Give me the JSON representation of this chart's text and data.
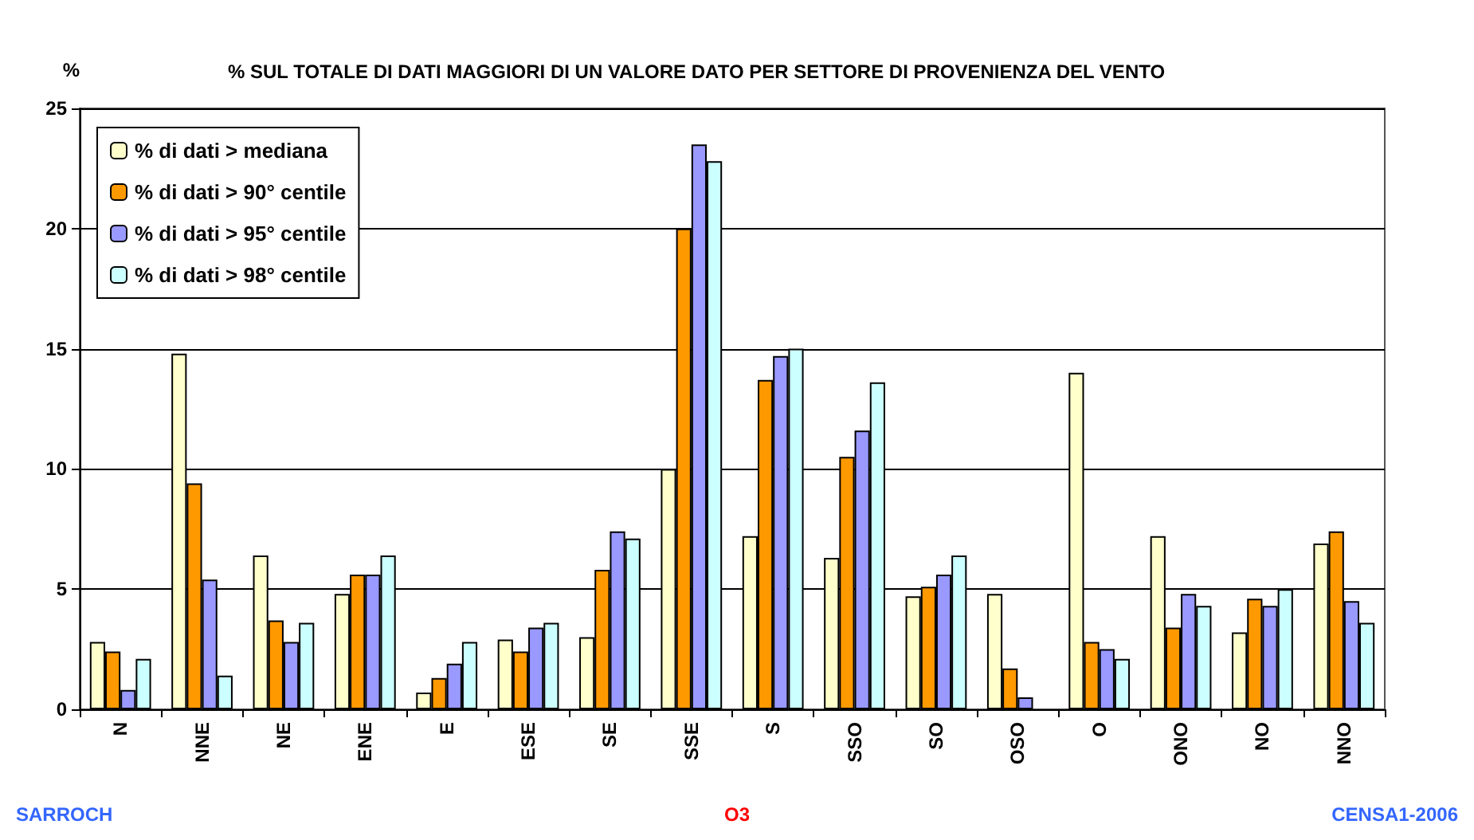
{
  "chart_data": {
    "type": "bar",
    "title": "% SUL TOTALE DI DATI MAGGIORI DI UN VALORE DATO PER SETTORE DI PROVENIENZA DEL VENTO",
    "ylabel": "%",
    "categories": [
      "N",
      "NNE",
      "NE",
      "ENE",
      "E",
      "ESE",
      "SE",
      "SSE",
      "S",
      "SSO",
      "SO",
      "OSO",
      "O",
      "ONO",
      "NO",
      "NNO"
    ],
    "series": [
      {
        "name": "% di dati > mediana",
        "color": "#ffffcc",
        "values": [
          2.8,
          14.8,
          6.4,
          4.8,
          0.7,
          2.9,
          3.0,
          10.0,
          7.2,
          6.3,
          4.7,
          4.8,
          14.0,
          7.2,
          3.2,
          6.9
        ]
      },
      {
        "name": "% di dati > 90° centile",
        "color": "#ff9900",
        "values": [
          2.4,
          9.4,
          3.7,
          5.6,
          1.3,
          2.4,
          5.8,
          20.0,
          13.7,
          10.5,
          5.1,
          1.7,
          2.8,
          3.4,
          4.6,
          7.4
        ]
      },
      {
        "name": "% di dati > 95° centile",
        "color": "#9999ff",
        "values": [
          0.8,
          5.4,
          2.8,
          5.6,
          1.9,
          3.4,
          7.4,
          23.5,
          14.7,
          11.6,
          5.6,
          0.5,
          2.5,
          4.8,
          4.3,
          4.5
        ]
      },
      {
        "name": "% di dati > 98° centile",
        "color": "#ccffff",
        "values": [
          2.1,
          1.4,
          3.6,
          6.4,
          2.8,
          3.6,
          7.1,
          22.8,
          15.0,
          13.6,
          6.4,
          null,
          2.1,
          4.3,
          5.0,
          3.6
        ]
      }
    ],
    "ylim": [
      0,
      25
    ],
    "yticks": [
      0,
      5,
      10,
      15,
      20,
      25
    ],
    "grid": "y",
    "legend": "top left",
    "annotations": [
      "SARROCH",
      "O3",
      "CENSA1-2006"
    ]
  }
}
